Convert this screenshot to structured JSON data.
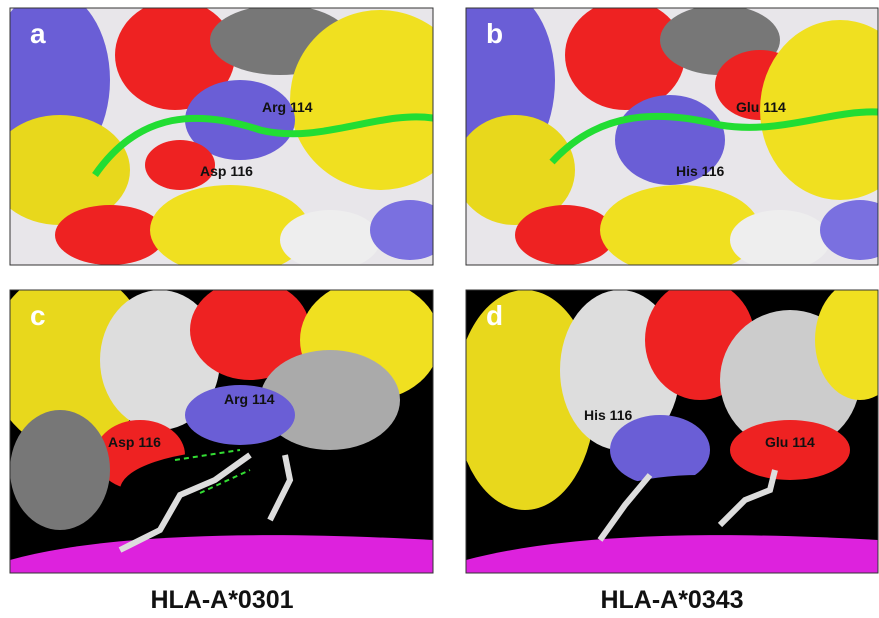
{
  "panels": [
    {
      "label": "a",
      "annotations": [
        "Arg 114",
        "Asp 116"
      ]
    },
    {
      "label": "b",
      "annotations": [
        "Glu 114",
        "His 116"
      ]
    },
    {
      "label": "c",
      "annotations": [
        "Arg 114",
        "Asp 116"
      ]
    },
    {
      "label": "d",
      "annotations": [
        "His 116",
        "Glu 114"
      ]
    }
  ],
  "captions": [
    "HLA-A*0301",
    "HLA-A*0343"
  ]
}
